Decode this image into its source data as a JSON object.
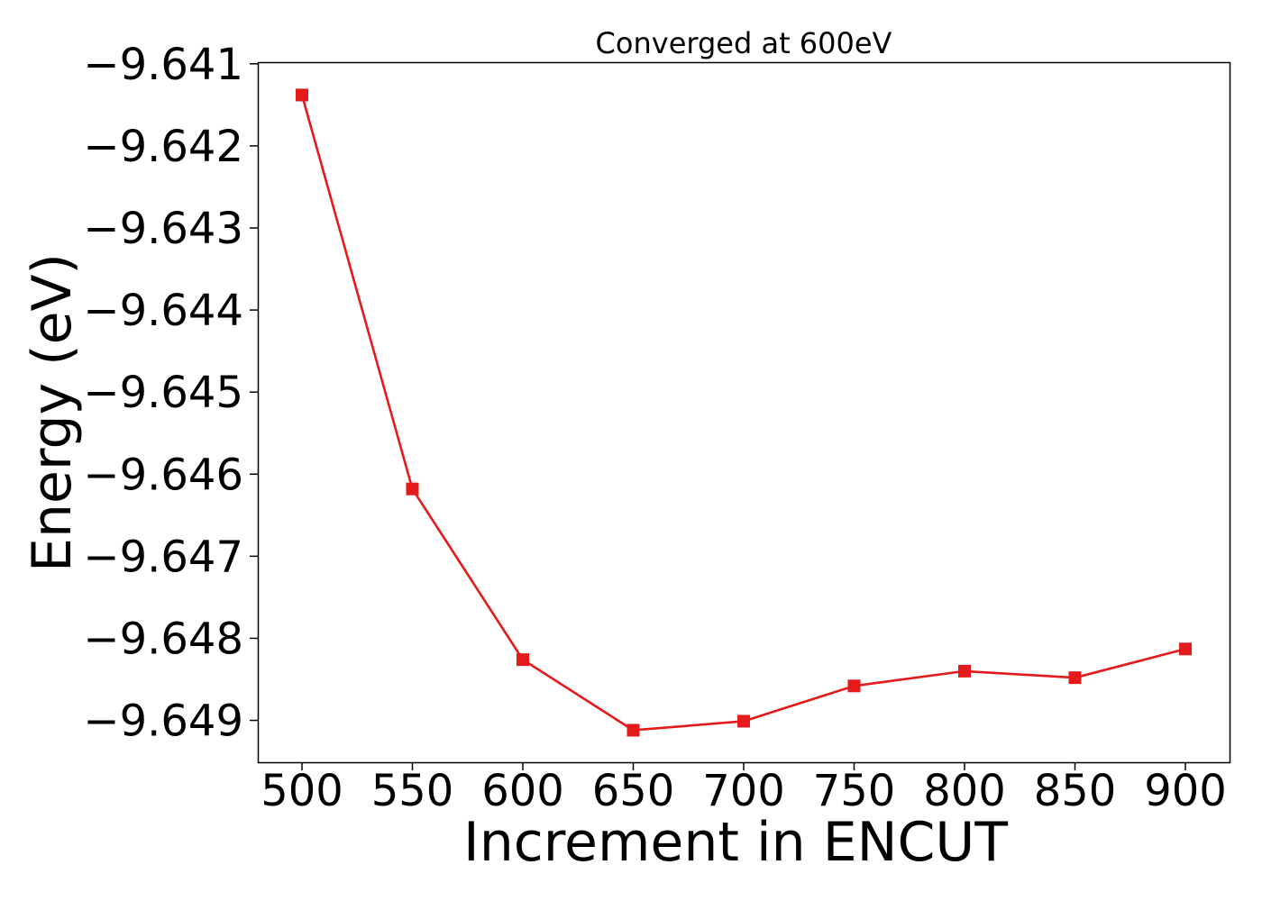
{
  "chart_data": {
    "type": "line",
    "title": "Converged at 600eV",
    "xlabel": "Increment in ENCUT",
    "ylabel": "Energy (eV)",
    "x": [
      500,
      550,
      600,
      650,
      700,
      750,
      800,
      850,
      900
    ],
    "series": [
      {
        "values": [
          -9.64138,
          -9.64618,
          -9.64826,
          -9.64912,
          -9.64901,
          -9.64858,
          -9.6484,
          -9.64848,
          -9.64813
        ],
        "color": "#e41a1c",
        "marker": "square",
        "line": "solid"
      }
    ],
    "xticks": [
      500,
      550,
      600,
      650,
      700,
      750,
      800,
      850,
      900
    ],
    "xtick_labels": [
      "500",
      "550",
      "600",
      "650",
      "700",
      "750",
      "800",
      "850",
      "900"
    ],
    "yticks": [
      -9.641,
      -9.642,
      -9.643,
      -9.644,
      -9.645,
      -9.646,
      -9.647,
      -9.648,
      -9.649
    ],
    "ytick_labels": [
      "−9.641",
      "−9.642",
      "−9.643",
      "−9.644",
      "−9.645",
      "−9.646",
      "−9.647",
      "−9.648",
      "−9.649"
    ],
    "xlim": [
      480,
      920
    ],
    "ylim": [
      -9.64951,
      -9.64098
    ],
    "grid": false,
    "legend": "none"
  }
}
